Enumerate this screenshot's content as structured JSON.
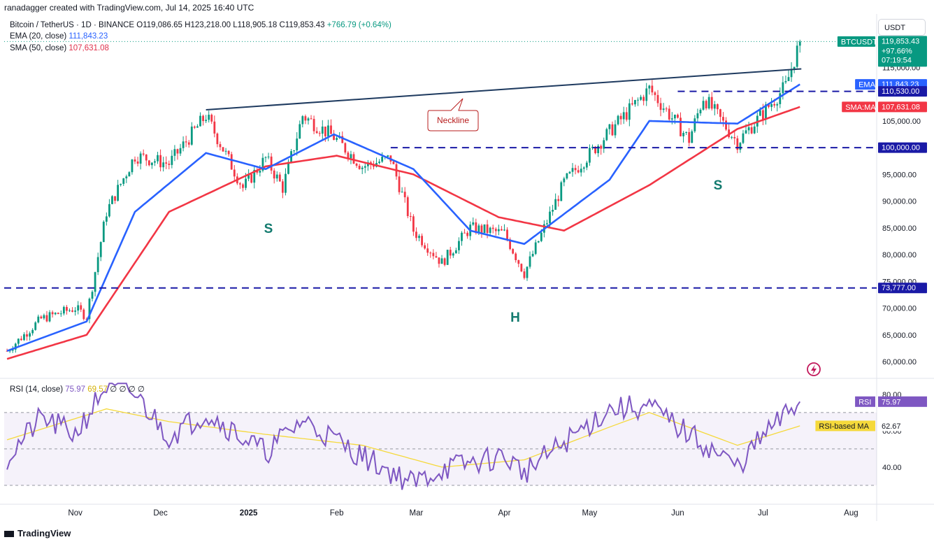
{
  "credit": "ranadagger created with TradingView.com, Jul 14, 2025 16:40 UTC",
  "brand": "TradingView",
  "currency_button": "USDT",
  "legend": {
    "symbol": "Bitcoin / TetherUS · 1D · BINANCE",
    "ohlc": "O119,086.65 H123,218.00 L118,905.18 C119,853.43",
    "change": "+766.79 (+0.64%)",
    "ema_label": "EMA (20, close)",
    "ema_value": "111,843.23",
    "sma_label": "SMA (50, close)",
    "sma_value": "107,631.08",
    "rsi_label": "RSI (14, close)",
    "rsi_value": "75.97",
    "rsi_extra": "69.57",
    "rsi_zeros": "∅ ∅ ∅ ∅"
  },
  "colors": {
    "up": "#089981",
    "down": "#f23645",
    "ema": "#2962ff",
    "sma": "#f23645",
    "neckline": "#1e3a5f",
    "dashed": "#1a1aa6",
    "rsi": "#7e57c2",
    "rsi_ma": "#f5d93b",
    "pattern_label": "#127a6e"
  },
  "price_axis": [
    "115,000.00",
    "105,000.00",
    "95,000.00",
    "90,000.00",
    "85,000.00",
    "80,000.00",
    "75,000.00",
    "70,000.00",
    "65,000.00",
    "60,000.00"
  ],
  "price_tags": [
    {
      "label": "BTCUSDT",
      "value": "119,853.43",
      "extra": [
        "+97.66%",
        "07:19:54"
      ],
      "price": 119853.43,
      "color": "#089981"
    },
    {
      "label": "EMA",
      "value": "111,843.23",
      "price": 111843.23,
      "color": "#2962ff"
    },
    {
      "label": "",
      "value": "110,530.00",
      "price": 110530,
      "color": "#1a1aa6"
    },
    {
      "label": "SMA:MA",
      "value": "107,631.08",
      "price": 107631.08,
      "color": "#f23645"
    },
    {
      "label": "",
      "value": "100,000.00",
      "price": 100000,
      "color": "#1a1aa6"
    },
    {
      "label": "",
      "value": "73,777.00",
      "price": 73777,
      "color": "#1a1aa6"
    }
  ],
  "rsi_axis": [
    "80.00",
    "60.00",
    "40.00"
  ],
  "rsi_tags": [
    {
      "label": "RSI",
      "value": "75.97",
      "rsi": 75.97,
      "color": "#7e57c2"
    },
    {
      "label": "RSI-based MA",
      "value": "62.67",
      "rsi": 62.67,
      "color": "#f5d93b"
    }
  ],
  "time_axis": [
    "Nov",
    "Dec",
    "2025",
    "Feb",
    "Mar",
    "Apr",
    "May",
    "Jun",
    "Jul",
    "Aug"
  ],
  "annotations": {
    "neckline": "Neckline",
    "left_shoulder": "S",
    "head": "H",
    "right_shoulder": "S"
  },
  "chart_data": [
    {
      "type": "line",
      "title": "Bitcoin / TetherUS · 1D · BINANCE",
      "chart_kind": "candlestick",
      "ylim": [
        57000,
        125000
      ],
      "x_range": [
        "2024-10-07",
        "2025-08-10"
      ],
      "grid": false,
      "series": [
        {
          "name": "Bitcoin / TetherUS",
          "x": [
            "2024-10-08",
            "2024-10-20",
            "2024-11-01",
            "2024-11-05",
            "2024-11-12",
            "2024-11-22",
            "2024-12-04",
            "2024-12-17",
            "2024-12-30",
            "2025-01-07",
            "2025-01-13",
            "2025-01-20",
            "2025-01-31",
            "2025-02-10",
            "2025-02-20",
            "2025-02-28",
            "2025-03-10",
            "2025-03-20",
            "2025-04-01",
            "2025-04-08",
            "2025-04-22",
            "2025-05-08",
            "2025-05-22",
            "2025-06-05",
            "2025-06-10",
            "2025-06-22",
            "2025-07-01",
            "2025-07-09",
            "2025-07-14"
          ],
          "values": [
            62000,
            68000,
            70000,
            68500,
            88000,
            98500,
            97000,
            106000,
            92500,
            98000,
            92500,
            106000,
            102000,
            96500,
            98000,
            84500,
            78500,
            85000,
            84000,
            76500,
            93500,
            103000,
            111000,
            101500,
            109500,
            101000,
            106500,
            111500,
            119853
          ]
        },
        {
          "name": "EMA (20, close)",
          "x": [
            "2024-10-08",
            "2024-11-05",
            "2024-11-22",
            "2024-12-17",
            "2025-01-07",
            "2025-01-31",
            "2025-02-28",
            "2025-03-20",
            "2025-04-08",
            "2025-05-08",
            "2025-05-22",
            "2025-06-22",
            "2025-07-14"
          ],
          "values": [
            62000,
            67500,
            88000,
            99000,
            96000,
            102500,
            96000,
            84500,
            82000,
            94000,
            105000,
            104500,
            111843
          ]
        },
        {
          "name": "SMA (50, close)",
          "x": [
            "2024-10-08",
            "2024-11-05",
            "2024-12-04",
            "2025-01-07",
            "2025-02-01",
            "2025-02-28",
            "2025-03-30",
            "2025-04-22",
            "2025-05-22",
            "2025-06-22",
            "2025-07-14"
          ],
          "values": [
            60500,
            65000,
            88000,
            96500,
            98500,
            95000,
            87000,
            84500,
            93000,
            103500,
            107631
          ]
        }
      ],
      "lines": [
        {
          "name": "Neckline",
          "from": [
            "2024-12-17",
            109000
          ],
          "to": [
            "2025-07-14",
            115000
          ]
        },
        {
          "name": "resistance",
          "value": 110530
        },
        {
          "name": "support",
          "value": 100000
        },
        {
          "name": "support",
          "value": 73777
        }
      ]
    },
    {
      "type": "line",
      "title": "RSI (14, close)",
      "ylim": [
        20,
        88
      ],
      "bands": [
        70,
        50,
        30
      ],
      "series": [
        {
          "name": "RSI",
          "x": [
            "2024-10-08",
            "2024-10-20",
            "2024-11-01",
            "2024-11-12",
            "2024-11-22",
            "2024-12-04",
            "2024-12-17",
            "2025-01-07",
            "2025-01-20",
            "2025-02-10",
            "2025-02-28",
            "2025-03-10",
            "2025-04-01",
            "2025-04-08",
            "2025-05-08",
            "2025-05-22",
            "2025-06-05",
            "2025-06-22",
            "2025-07-01",
            "2025-07-14"
          ],
          "values": [
            45,
            67,
            58,
            85,
            80,
            57,
            70,
            48,
            66,
            46,
            31,
            39,
            46,
            37,
            72,
            73,
            58,
            40,
            57,
            75.97
          ]
        },
        {
          "name": "RSI-based MA",
          "x": [
            "2024-10-08",
            "2024-11-12",
            "2024-12-04",
            "2025-01-07",
            "2025-02-10",
            "2025-03-10",
            "2025-04-08",
            "2025-05-08",
            "2025-05-22",
            "2025-06-22",
            "2025-07-14"
          ],
          "values": [
            55,
            72,
            65,
            58,
            52,
            40,
            44,
            62,
            70,
            52,
            62.67
          ]
        }
      ]
    }
  ]
}
